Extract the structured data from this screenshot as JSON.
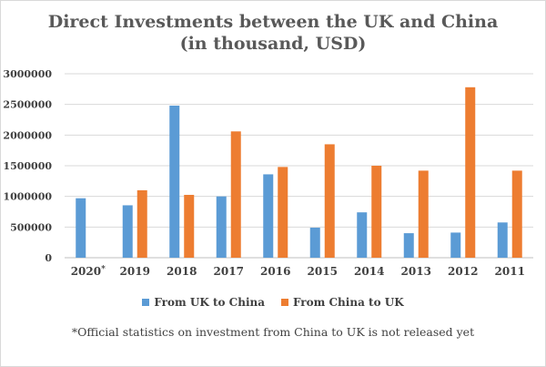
{
  "chart_data": {
    "type": "bar",
    "title": "Direct Investments between the UK and China",
    "subtitle": "(in thousand, USD)",
    "categories": [
      "2020",
      "2019",
      "2018",
      "2017",
      "2016",
      "2015",
      "2014",
      "2013",
      "2012",
      "2011"
    ],
    "category_marks": [
      "*",
      "",
      "",
      "",
      "",
      "",
      "",
      "",
      "",
      ""
    ],
    "series": [
      {
        "name": "From UK to China",
        "color": "#5B9BD5",
        "values": [
          970000,
          855000,
          2480000,
          1000000,
          1360000,
          490000,
          740000,
          400000,
          410000,
          575000
        ]
      },
      {
        "name": "From China to UK",
        "color": "#ED7D31",
        "values": [
          null,
          1100000,
          1025000,
          2060000,
          1480000,
          1850000,
          1500000,
          1420000,
          2780000,
          1420000
        ]
      }
    ],
    "yticks": [
      0,
      500000,
      1000000,
      1500000,
      2000000,
      2500000,
      3000000
    ],
    "ylim": [
      0,
      3000000
    ],
    "xlabel": "",
    "ylabel": "",
    "grid": true,
    "legend_position": "bottom",
    "footnote": "*Official statistics on investment from China to UK is not released yet"
  }
}
